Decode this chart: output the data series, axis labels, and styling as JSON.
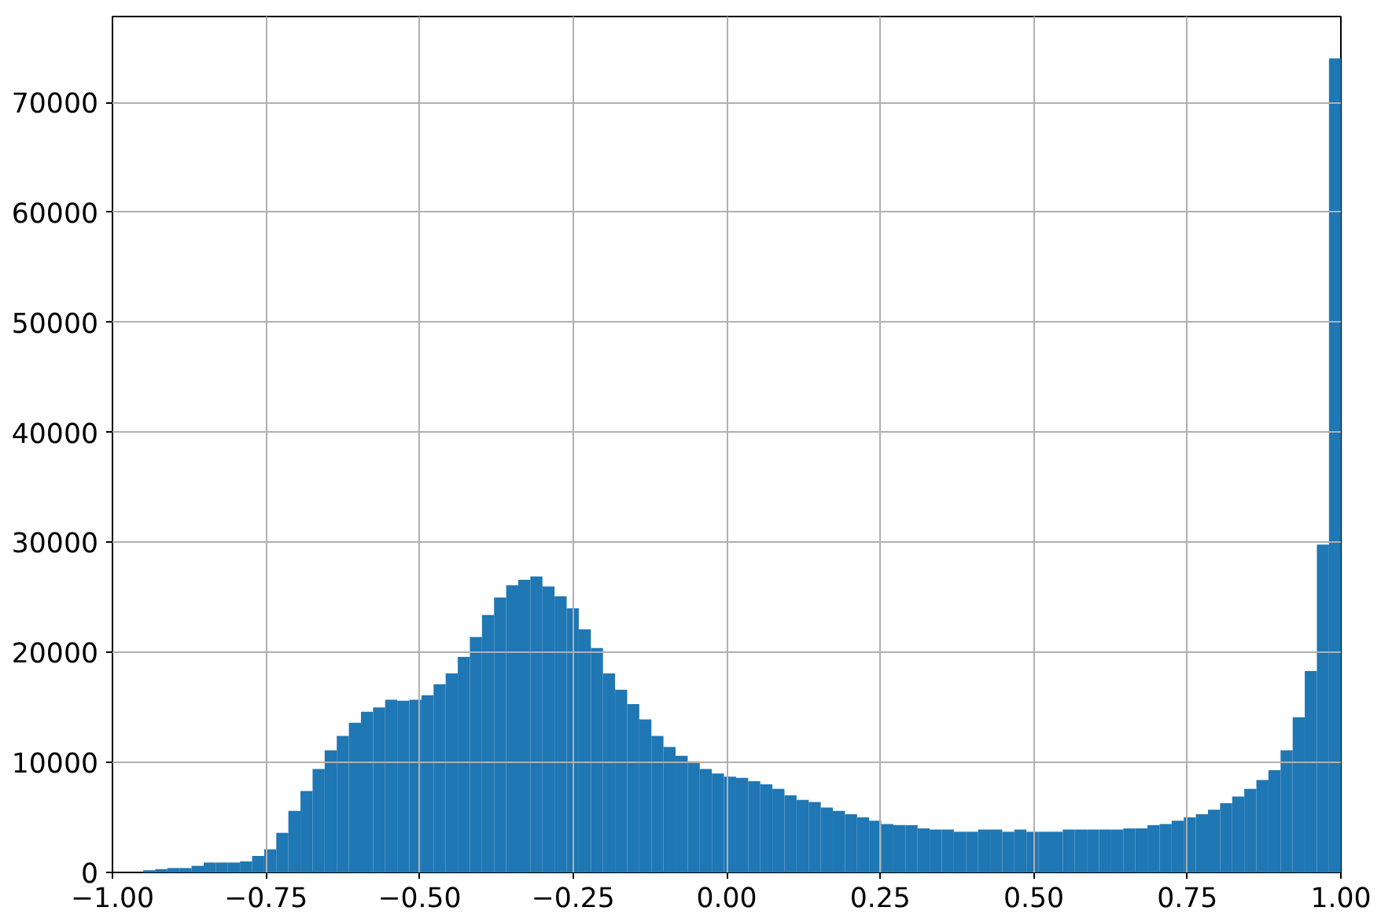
{
  "chart_data": {
    "type": "histogram",
    "bins": [
      -0.95,
      -0.9303,
      -0.9106,
      -0.8909,
      -0.8712,
      -0.8515,
      -0.8318,
      -0.8121,
      -0.7924,
      -0.7727,
      -0.753,
      -0.7333,
      -0.7136,
      -0.6939,
      -0.6742,
      -0.6545,
      -0.6348,
      -0.6151,
      -0.5954,
      -0.5757,
      -0.556,
      -0.5363,
      -0.5166,
      -0.4969,
      -0.4772,
      -0.4575,
      -0.4378,
      -0.4181,
      -0.3984,
      -0.3787,
      -0.359,
      -0.3393,
      -0.3196,
      -0.2999,
      -0.2802,
      -0.2605,
      -0.2408,
      -0.2211,
      -0.2014,
      -0.1817,
      -0.162,
      -0.1423,
      -0.1226,
      -0.1029,
      -0.0832,
      -0.0635,
      -0.0438,
      -0.0241,
      -0.0044,
      0.0153,
      0.035,
      0.0547,
      0.0744,
      0.0941,
      0.1138,
      0.1335,
      0.1532,
      0.1729,
      0.1926,
      0.2123,
      0.232,
      0.2517,
      0.2714,
      0.2911,
      0.3108,
      0.3305,
      0.3502,
      0.3699,
      0.3896,
      0.4093,
      0.429,
      0.4487,
      0.4684,
      0.4881,
      0.5078,
      0.5275,
      0.5472,
      0.5669,
      0.5866,
      0.6063,
      0.626,
      0.6457,
      0.6654,
      0.6851,
      0.7048,
      0.7245,
      0.7442,
      0.7639,
      0.7836,
      0.8033,
      0.823,
      0.8427,
      0.8624,
      0.8821,
      0.9018,
      0.9215,
      0.9412,
      0.9609,
      0.9806,
      1.0
    ],
    "values": [
      200,
      300,
      400,
      400,
      600,
      900,
      900,
      900,
      1000,
      1500,
      2100,
      3600,
      5600,
      7400,
      9400,
      11100,
      12400,
      13600,
      14600,
      15000,
      15700,
      15600,
      15700,
      16100,
      17100,
      18100,
      19600,
      21400,
      23400,
      25000,
      26100,
      26600,
      26900,
      26000,
      25100,
      24000,
      22100,
      20400,
      18100,
      16600,
      15300,
      13900,
      12400,
      11400,
      10600,
      10100,
      9400,
      9000,
      8700,
      8600,
      8300,
      8000,
      7600,
      7000,
      6600,
      6400,
      5900,
      5600,
      5300,
      5000,
      4700,
      4400,
      4300,
      4300,
      4000,
      3900,
      3900,
      3700,
      3700,
      3900,
      3900,
      3700,
      3900,
      3700,
      3700,
      3700,
      3900,
      3900,
      3900,
      3900,
      3900,
      4000,
      4000,
      4300,
      4400,
      4700,
      5000,
      5300,
      5700,
      6300,
      6900,
      7600,
      8400,
      9300,
      11100,
      14100,
      18300,
      29800,
      74000
    ],
    "color": "#1f77b4",
    "xlim": [
      -1.0,
      1.0
    ],
    "xticks": [
      {
        "value": -1.0,
        "label": "−1.00"
      },
      {
        "value": -0.75,
        "label": "−0.75"
      },
      {
        "value": -0.5,
        "label": "−0.50"
      },
      {
        "value": -0.25,
        "label": "−0.25"
      },
      {
        "value": 0.0,
        "label": "0.00"
      },
      {
        "value": 0.25,
        "label": "0.25"
      },
      {
        "value": 0.5,
        "label": "0.50"
      },
      {
        "value": 0.75,
        "label": "0.75"
      },
      {
        "value": 1.0,
        "label": "1.00"
      }
    ],
    "ylim": [
      0,
      77800
    ],
    "yticks": [
      0,
      10000,
      20000,
      30000,
      40000,
      50000,
      60000,
      70000
    ],
    "grid": true
  }
}
